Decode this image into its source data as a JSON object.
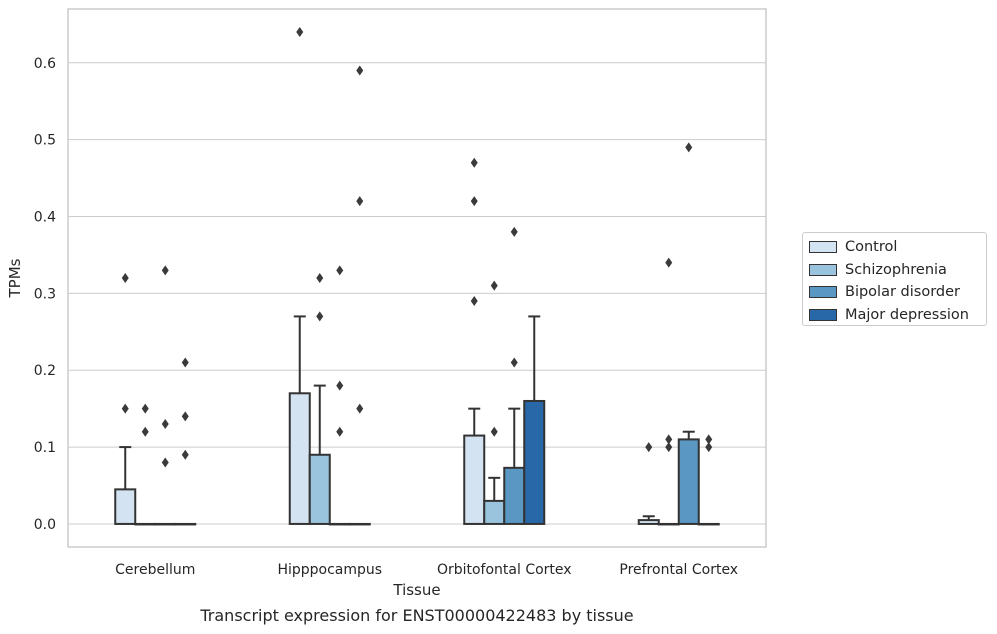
{
  "chart_data": {
    "type": "bar",
    "title": "",
    "caption": "Transcript expression for ENST00000422483 by tissue",
    "xlabel": "Tissue",
    "ylabel": "TPMs",
    "ylim": [
      -0.03,
      0.67
    ],
    "yticks": [
      "0.0",
      "0.1",
      "0.2",
      "0.3",
      "0.4",
      "0.5",
      "0.6"
    ],
    "grid": true,
    "legend_position": "right",
    "categories": [
      "Cerebellum",
      "Hipppocampus",
      "Orbitofontal Cortex",
      "Prefrontal Cortex"
    ],
    "series": [
      {
        "name": "Control",
        "color": "#d3e3f1",
        "values": [
          0.045,
          0.17,
          0.115,
          0.005
        ],
        "error_upper": [
          0.1,
          0.27,
          0.15,
          0.01
        ],
        "outliers": [
          [
            0.32,
            0.15
          ],
          [
            0.64
          ],
          [
            0.47,
            0.42,
            0.29
          ],
          [
            0.1
          ]
        ]
      },
      {
        "name": "Schizophrenia",
        "color": "#9ac4de",
        "values": [
          0.0,
          0.09,
          0.03,
          0.0
        ],
        "error_upper": [
          null,
          0.18,
          0.06,
          null
        ],
        "outliers": [
          [
            0.15,
            0.12
          ],
          [
            0.32,
            0.27
          ],
          [
            0.31,
            0.12
          ],
          [
            0.34,
            0.11,
            0.1
          ]
        ]
      },
      {
        "name": "Bipolar disorder",
        "color": "#5a97c2",
        "values": [
          0.0,
          0.0,
          0.073,
          0.11
        ],
        "error_upper": [
          null,
          null,
          0.15,
          0.12
        ],
        "outliers": [
          [
            0.33,
            0.13,
            0.08
          ],
          [
            0.33,
            0.18,
            0.12
          ],
          [
            0.38,
            0.21
          ],
          [
            0.49
          ]
        ]
      },
      {
        "name": "Major depression",
        "color": "#2867a8",
        "values": [
          0.0,
          0.0,
          0.16,
          0.0
        ],
        "error_upper": [
          null,
          null,
          0.27,
          null
        ],
        "outliers": [
          [
            0.21,
            0.14,
            0.09
          ],
          [
            0.59,
            0.42,
            0.15
          ],
          [],
          [
            0.11,
            0.1
          ]
        ]
      }
    ]
  }
}
